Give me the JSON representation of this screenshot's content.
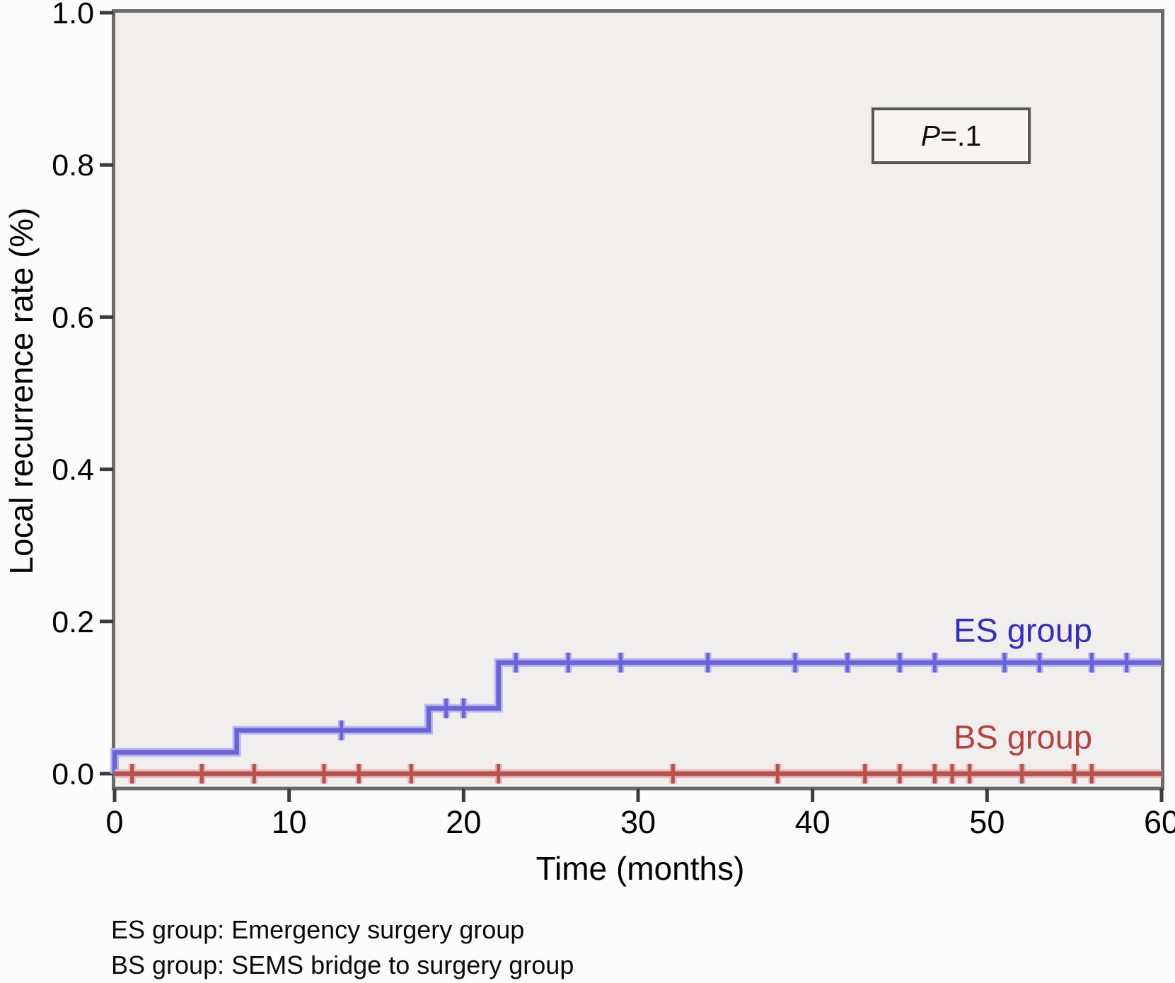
{
  "figure": {
    "footnotes": [
      "ES group: Emergency surgery group",
      "BS group: SEMS bridge to surgery group"
    ]
  },
  "chart_data": {
    "type": "line",
    "subtype": "kaplan-meier-step",
    "title": "",
    "xlabel": "Time (months)",
    "ylabel": "Local recurrence rate (%)",
    "xlim": [
      0,
      60
    ],
    "ylim": [
      0,
      1.0
    ],
    "xticks": {
      "values": [
        0,
        10,
        20,
        30,
        40,
        50,
        60
      ],
      "labels": [
        "0",
        "10",
        "20",
        "30",
        "40",
        "50",
        "60"
      ]
    },
    "yticks": {
      "values": [
        0,
        0.2,
        0.4,
        0.6,
        0.8,
        1.0
      ],
      "labels": [
        "0.0",
        "0.2",
        "0.4",
        "0.6",
        "0.8",
        "1.0"
      ]
    },
    "grid": false,
    "legend_position": "inline-right",
    "plot_bg": "#f0efee",
    "frame_color": "#6a6a6a",
    "tick_color": "#3c3c3c",
    "annotation": {
      "italic": "P",
      "rest": "=.1",
      "text": "P=.1",
      "position": "top-right"
    },
    "series": [
      {
        "name": "ES group",
        "color": "#6a64d8",
        "halo": "#b7b4ee",
        "label_color": "#322cc4",
        "steps": [
          {
            "x": 0,
            "y": 0.028
          },
          {
            "x": 7,
            "y": 0.057
          },
          {
            "x": 18,
            "y": 0.086
          },
          {
            "x": 22,
            "y": 0.146
          }
        ],
        "end_x": 60,
        "censor_x": [
          13,
          19,
          20,
          23,
          26,
          29,
          34,
          39,
          42,
          45,
          47,
          51,
          53,
          56,
          58
        ]
      },
      {
        "name": "BS group",
        "color": "#b8504e",
        "halo": "#e6b8b6",
        "label_color": "#b5423e",
        "steps": [
          {
            "x": 0,
            "y": 0.0
          }
        ],
        "end_x": 60,
        "censor_x": [
          1,
          5,
          8,
          12,
          14,
          17,
          22,
          32,
          38,
          43,
          45,
          47,
          48,
          49,
          52,
          55,
          56
        ]
      }
    ]
  }
}
